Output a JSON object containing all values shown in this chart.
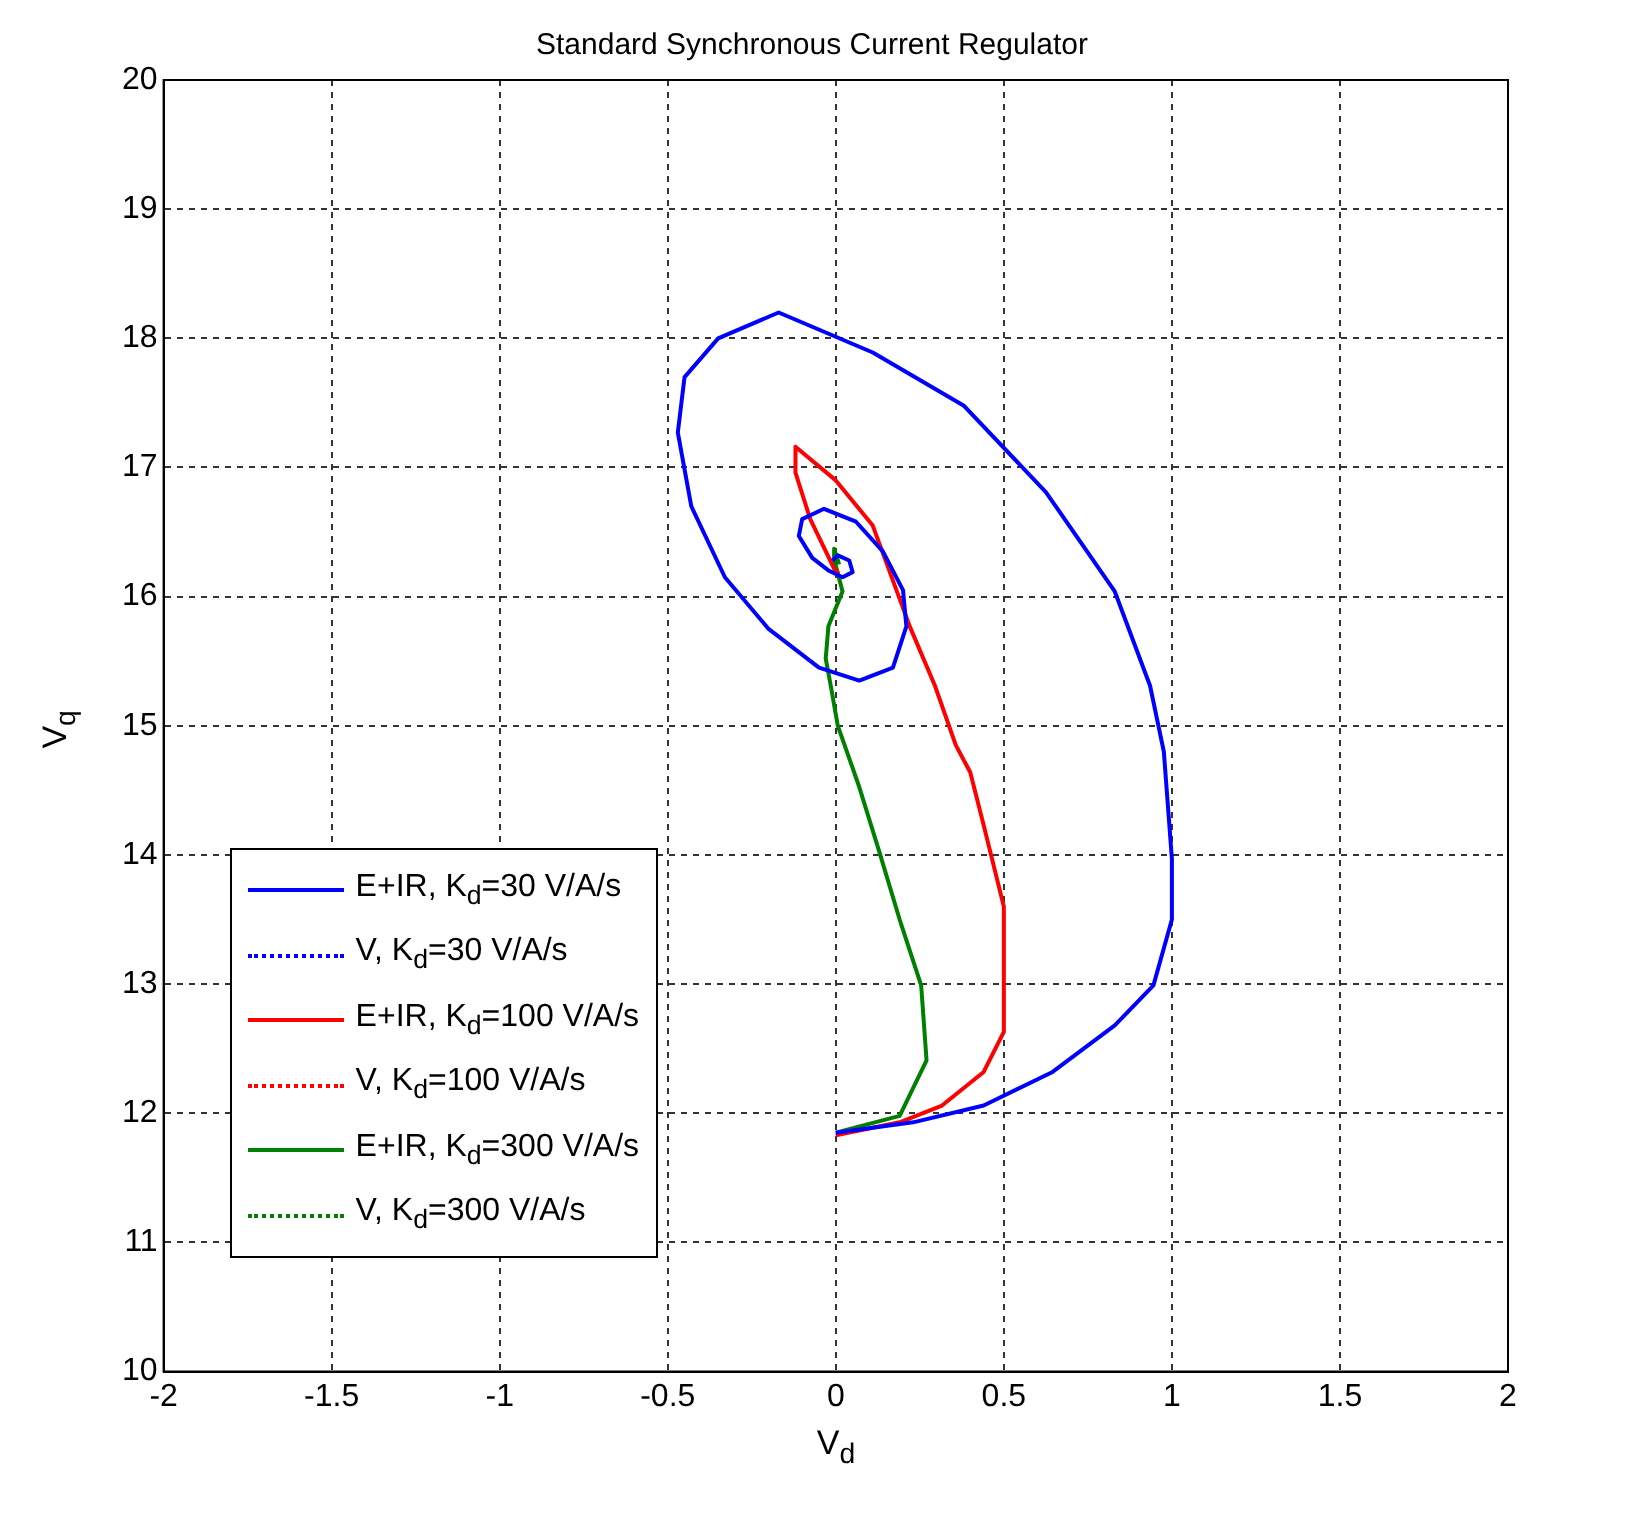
{
  "chart_data": {
    "type": "line",
    "title": "Standard Synchronous Current Regulator",
    "xlabel": "V$_{d}$",
    "ylabel": "V$_{q}$",
    "xlim": [
      -2,
      2
    ],
    "xticks": [
      -2,
      -1.5,
      -1,
      -0.5,
      0,
      0.5,
      1,
      1.5,
      2
    ],
    "ylim": [
      10,
      20
    ],
    "yticks": [
      10,
      11,
      12,
      13,
      14,
      15,
      16,
      17,
      18,
      19,
      20
    ],
    "grid": true,
    "legend": "bottom left",
    "marker": "none",
    "series": [
      {
        "name": "E+IR, K$_{d}$=30 V/A/s",
        "color": "#0000ff",
        "line_style": "solid",
        "x": [
          0,
          0.23,
          0.44,
          0.645,
          0.83,
          0.945,
          1.0,
          1.0,
          0.976,
          0.935,
          0.83,
          0.625,
          0.38,
          0.11,
          -0.17,
          -0.35,
          -0.45,
          -0.47,
          -0.43,
          -0.33,
          -0.2,
          -0.05,
          0.07,
          0.17,
          0.21,
          0.2,
          0.14,
          0.06,
          -0.035,
          -0.1,
          -0.11,
          -0.07,
          -0.02,
          0.02,
          0.05,
          0.04,
          0.006,
          -0.01
        ],
        "values": [
          11.85,
          11.93,
          12.06,
          12.32,
          12.68,
          12.99,
          13.5,
          13.97,
          14.8,
          15.31,
          16.04,
          16.81,
          17.48,
          17.89,
          18.2,
          18.0,
          17.7,
          17.27,
          16.7,
          16.15,
          15.75,
          15.45,
          15.35,
          15.45,
          15.77,
          16.05,
          16.35,
          16.58,
          16.68,
          16.6,
          16.47,
          16.3,
          16.2,
          16.15,
          16.19,
          16.28,
          16.32,
          16.28
        ]
      },
      {
        "name": "V, K$_{d}$=30 V/A/s",
        "color": "#0000ff",
        "line_style": "dotted",
        "x": [
          null
        ],
        "values": [
          null
        ]
      },
      {
        "name": "E+IR, K$_{d}$=100 V/A/s",
        "color": "#ff0000",
        "line_style": "solid",
        "x": [
          0,
          0.19,
          0.316,
          0.44,
          0.5,
          0.5,
          0.44,
          0.4,
          0.357,
          0.295,
          0.22,
          0.11,
          0,
          -0.12,
          -0.12,
          -0.076,
          0,
          0.01
        ],
        "values": [
          11.83,
          11.93,
          12.06,
          12.32,
          12.63,
          13.6,
          14.23,
          14.64,
          14.85,
          15.31,
          15.77,
          16.55,
          16.9,
          17.16,
          16.96,
          16.6,
          16.19,
          16.2
        ]
      },
      {
        "name": "V, K$_{d}$=100 V/A/s",
        "color": "#ff0000",
        "line_style": "dotted",
        "x": [
          null
        ],
        "values": [
          null
        ]
      },
      {
        "name": "E+IR, K$_{d}$=300 V/A/s",
        "color": "#008000",
        "line_style": "solid",
        "x": [
          0,
          0.19,
          0.27,
          0.254,
          0.19,
          0.13,
          0.068,
          0.006,
          -0.015,
          -0.03,
          -0.022,
          0.02,
          0,
          -0.005,
          0.01
        ],
        "values": [
          11.85,
          11.98,
          12.41,
          12.99,
          13.5,
          14.02,
          14.54,
          15.0,
          15.31,
          15.52,
          15.77,
          16.04,
          16.24,
          16.37,
          16.25
        ]
      },
      {
        "name": "V, K$_{d}$=300 V/A/s",
        "color": "#008000",
        "line_style": "dotted",
        "x": [
          null
        ],
        "values": [
          null
        ]
      }
    ]
  }
}
